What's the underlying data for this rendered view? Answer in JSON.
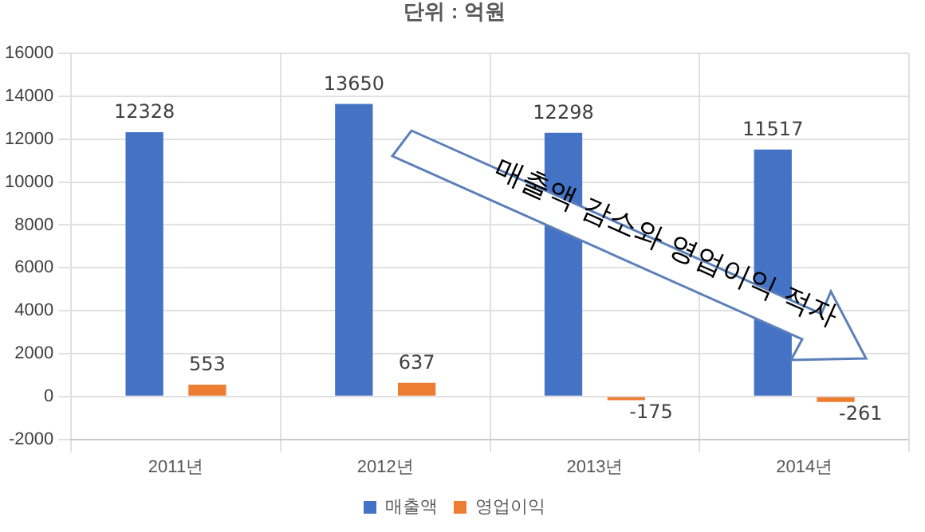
{
  "chart_data": {
    "type": "bar",
    "title": "단위 : 억원",
    "categories": [
      "2011년",
      "2012년",
      "2013년",
      "2014년"
    ],
    "series": [
      {
        "name": "매출액",
        "color": "#4472c4",
        "values": [
          12328,
          13650,
          12298,
          11517
        ]
      },
      {
        "name": "영업이익",
        "color": "#ed7d31",
        "values": [
          553,
          637,
          -175,
          -261
        ]
      }
    ],
    "ylim": [
      -2000,
      16000
    ],
    "yticks": [
      -2000,
      0,
      2000,
      4000,
      6000,
      8000,
      10000,
      12000,
      14000,
      16000
    ],
    "grid": true,
    "legend": "bottom",
    "data_labels": true,
    "annotations": [
      "매출액 감소와 영업이익 적자"
    ]
  }
}
